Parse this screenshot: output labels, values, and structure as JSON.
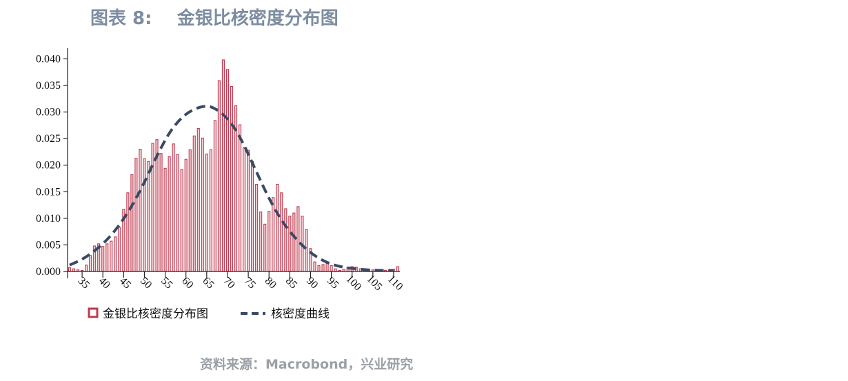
{
  "header": {
    "title": "图表 8:    金银比核密度分布图"
  },
  "footer": {
    "source": "资料来源：Macrobond，兴业研究"
  },
  "colors": {
    "bar_fill": "#f3d4d9",
    "bar_edge": "#c0394e",
    "curve": "#3b4a63",
    "axis": "#222222"
  },
  "chart_data": {
    "type": "bar",
    "title": "",
    "xlabel": "",
    "ylabel": "",
    "xlim": [
      31.5,
      111.5
    ],
    "ylim": [
      0,
      0.042
    ],
    "x_ticks": [
      35,
      40,
      45,
      50,
      55,
      60,
      65,
      70,
      75,
      80,
      85,
      90,
      95,
      100,
      105,
      110
    ],
    "y_ticks": [
      0.0,
      0.005,
      0.01,
      0.015,
      0.02,
      0.025,
      0.03,
      0.035,
      0.04
    ],
    "y_tick_labels": [
      "0.000",
      "0.005",
      "0.010",
      "0.015",
      "0.020",
      "0.025",
      "0.030",
      "0.035",
      "0.040"
    ],
    "legend": {
      "position": "bottom-left",
      "entries": [
        "金银比核密度分布图",
        "核密度曲线"
      ]
    },
    "series": [
      {
        "name": "金银比核密度分布图",
        "type": "bar",
        "x": [
          32,
          33,
          34,
          35,
          36,
          37,
          38,
          39,
          40,
          41,
          42,
          43,
          44,
          45,
          46,
          47,
          48,
          49,
          50,
          51,
          52,
          53,
          54,
          55,
          56,
          57,
          58,
          59,
          60,
          61,
          62,
          63,
          64,
          65,
          66,
          67,
          68,
          69,
          70,
          71,
          72,
          73,
          74,
          75,
          76,
          77,
          78,
          79,
          80,
          81,
          82,
          83,
          84,
          85,
          86,
          87,
          88,
          89,
          90,
          91,
          92,
          93,
          94,
          95,
          96,
          97,
          98,
          99,
          100,
          101,
          102,
          103,
          104,
          105,
          106,
          107,
          108,
          109,
          110,
          111
        ],
        "values": [
          0.0007,
          0.0005,
          0.0003,
          0.0002,
          0.0012,
          0.003,
          0.0048,
          0.0052,
          0.0047,
          0.0052,
          0.0057,
          0.0065,
          0.0083,
          0.0117,
          0.0148,
          0.0182,
          0.0213,
          0.023,
          0.0212,
          0.0207,
          0.0241,
          0.0248,
          0.0222,
          0.0194,
          0.0216,
          0.024,
          0.022,
          0.0192,
          0.0211,
          0.0229,
          0.0255,
          0.0269,
          0.0251,
          0.0221,
          0.0229,
          0.0284,
          0.0359,
          0.0398,
          0.038,
          0.0348,
          0.0312,
          0.0276,
          0.0233,
          0.0228,
          0.0207,
          0.0164,
          0.0112,
          0.0089,
          0.0113,
          0.0139,
          0.0164,
          0.0148,
          0.0118,
          0.0104,
          0.011,
          0.0122,
          0.0104,
          0.0079,
          0.0043,
          0.0018,
          0.0011,
          0.0013,
          0.0015,
          0.0011,
          0.0005,
          0.0002,
          0.0004,
          0.0008,
          0.0009,
          0.0008,
          0.0005,
          0.0004,
          0.0003,
          0.0003,
          0.0002,
          0.0002,
          0.0002,
          0.0003,
          0.0004,
          0.0009
        ]
      },
      {
        "name": "核密度曲线",
        "type": "line",
        "style": "dashed",
        "x": [
          32,
          35,
          38,
          41,
          44,
          47,
          50,
          53,
          56,
          59,
          62,
          65,
          67,
          69,
          71,
          73,
          75,
          77,
          80,
          83,
          86,
          89,
          92,
          95,
          98,
          101,
          104,
          107,
          110
        ],
        "values": [
          0.0012,
          0.0023,
          0.0039,
          0.006,
          0.0088,
          0.0124,
          0.0168,
          0.0217,
          0.026,
          0.0289,
          0.0305,
          0.0311,
          0.0306,
          0.0295,
          0.0277,
          0.0252,
          0.0221,
          0.0187,
          0.0138,
          0.0097,
          0.0066,
          0.0042,
          0.0025,
          0.0014,
          0.0008,
          0.0005,
          0.0003,
          0.0002,
          0.0002
        ]
      }
    ]
  }
}
